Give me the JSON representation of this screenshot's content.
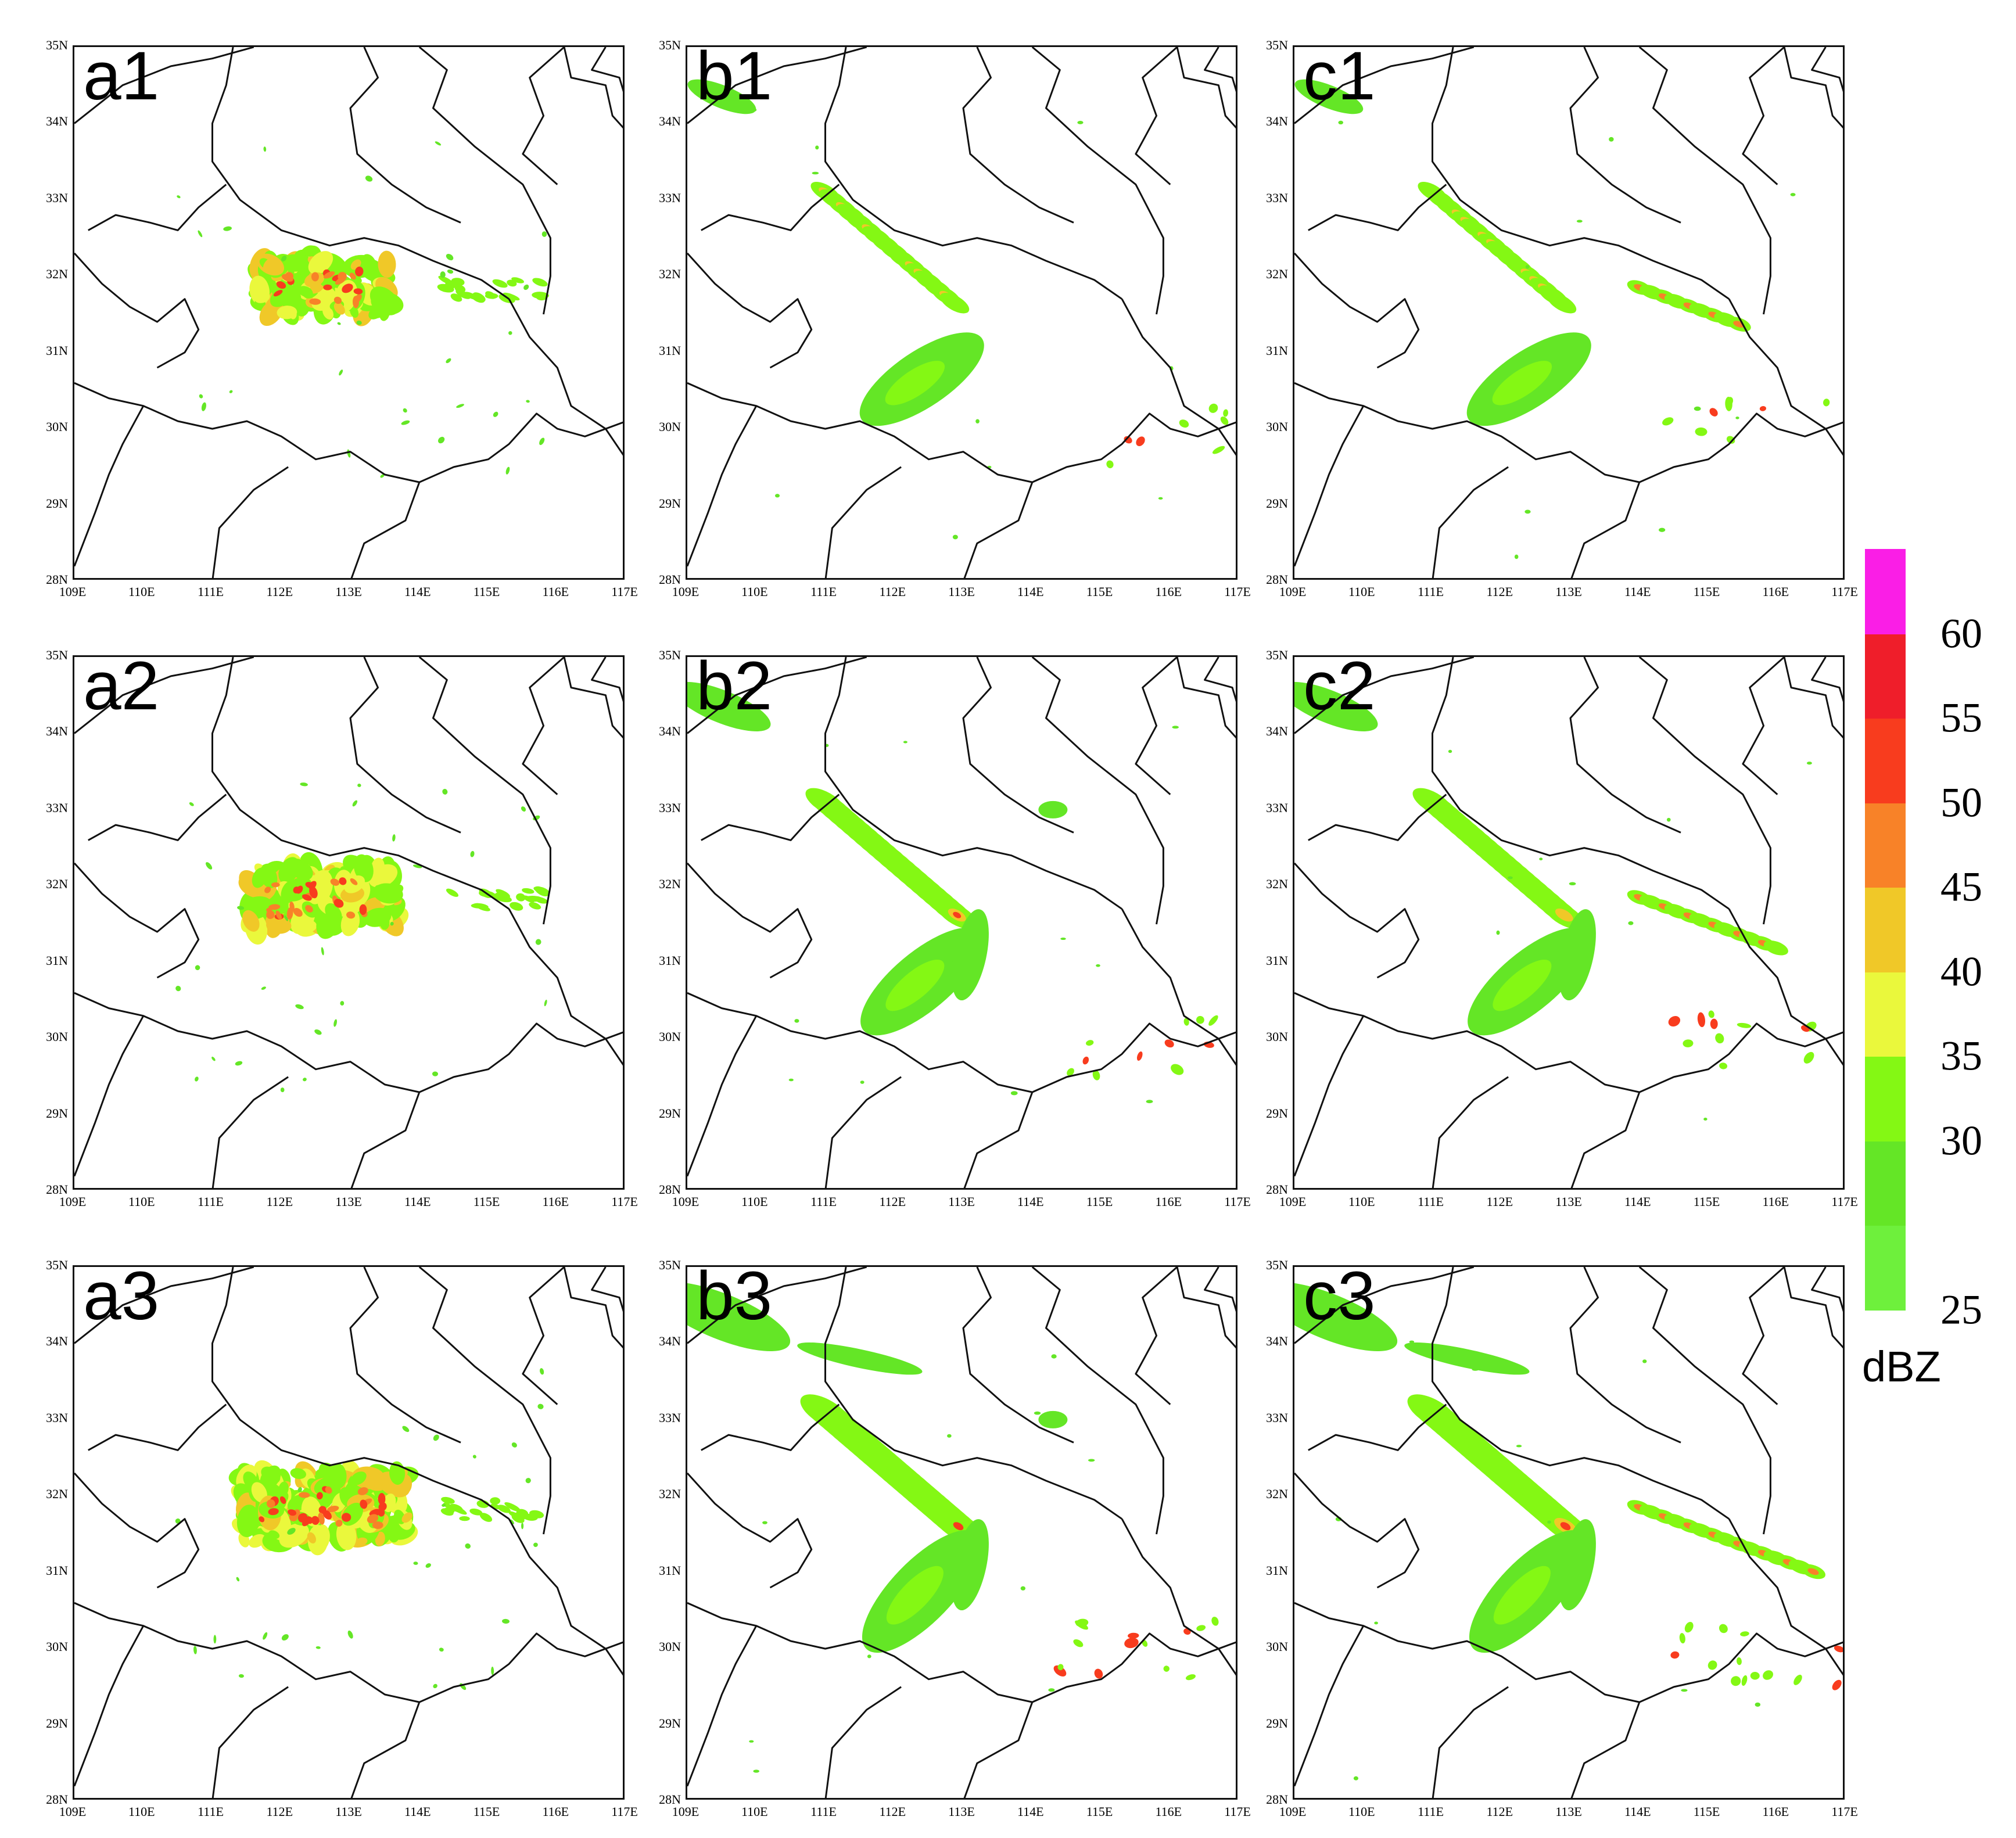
{
  "lat_ticks": [
    "28N",
    "29N",
    "30N",
    "31N",
    "32N",
    "33N",
    "34N",
    "35N"
  ],
  "lon_ticks": [
    "109E",
    "110E",
    "111E",
    "112E",
    "113E",
    "114E",
    "115E",
    "116E",
    "117E"
  ],
  "legend": {
    "unit": "dBZ",
    "labels": [
      "25",
      "30",
      "35",
      "40",
      "45",
      "50",
      "55",
      "60"
    ],
    "colors": [
      "#6ef03c",
      "#64e626",
      "#84f814",
      "#eaf83c",
      "#f0c828",
      "#f88228",
      "#f83c1e",
      "#ef1e2a",
      "#fa1ee6"
    ]
  },
  "panels": [
    {
      "label": "a1",
      "type": "obs",
      "level": 1
    },
    {
      "label": "b1",
      "type": "sim",
      "level": 1,
      "east": 0
    },
    {
      "label": "c1",
      "type": "sim",
      "level": 1,
      "east": 1
    },
    {
      "label": "a2",
      "type": "obs",
      "level": 2
    },
    {
      "label": "b2",
      "type": "sim",
      "level": 2,
      "east": 0
    },
    {
      "label": "c2",
      "type": "sim",
      "level": 2,
      "east": 1
    },
    {
      "label": "a3",
      "type": "obs",
      "level": 3
    },
    {
      "label": "b3",
      "type": "sim",
      "level": 3,
      "east": 0
    },
    {
      "label": "c3",
      "type": "sim",
      "level": 3,
      "east": 1
    }
  ]
}
